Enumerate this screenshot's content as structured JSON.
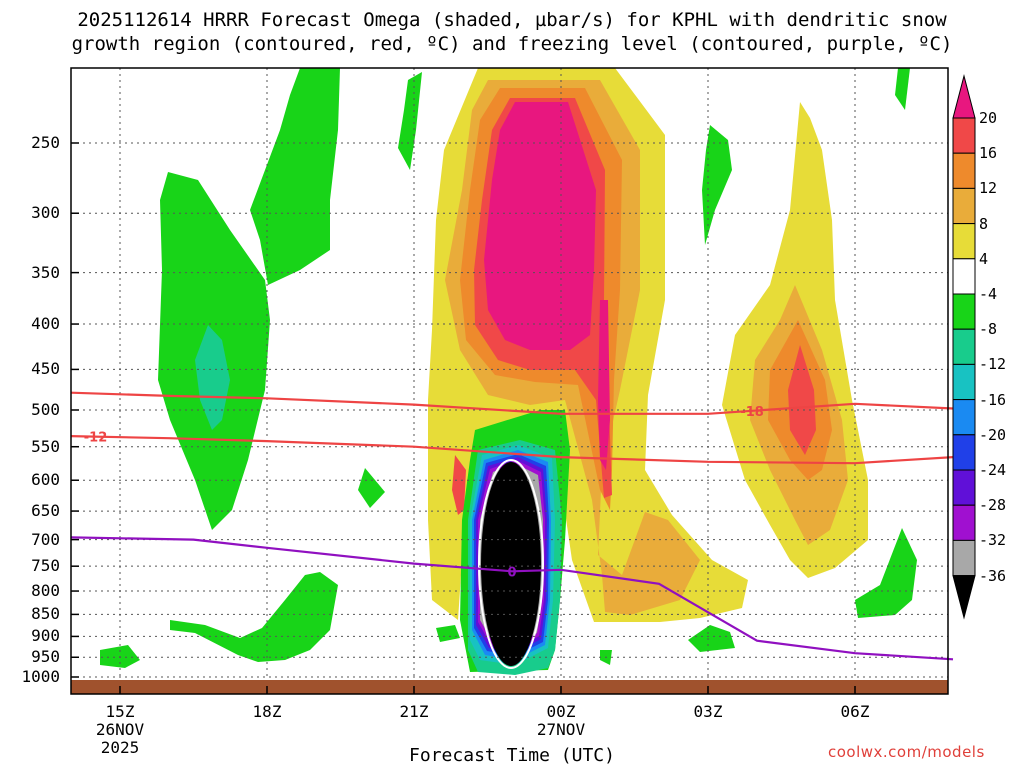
{
  "title_line1": "2025112614 HRRR Forecast Omega (shaded, µbar/s) for KPHL with dendritic snow",
  "title_line2": "growth region (contoured, red, ºC) and freezing level (contoured, purple, ºC)",
  "x_axis_title": "Forecast Time (UTC)",
  "credit": "coolwx.com/models",
  "y_labels": [
    "250",
    "300",
    "350",
    "400",
    "450",
    "500",
    "550",
    "600",
    "650",
    "700",
    "750",
    "800",
    "850",
    "900",
    "950",
    "1000"
  ],
  "x_labels": [
    {
      "l1": "15Z",
      "l2": "26NOV",
      "l3": "2025"
    },
    {
      "l1": "18Z",
      "l2": "",
      "l3": ""
    },
    {
      "l1": "21Z",
      "l2": "",
      "l3": ""
    },
    {
      "l1": "00Z",
      "l2": "27NOV",
      "l3": ""
    },
    {
      "l1": "03Z",
      "l2": "",
      "l3": ""
    },
    {
      "l1": "06Z",
      "l2": "",
      "l3": ""
    }
  ],
  "colorbar_labels": [
    "20",
    "16",
    "12",
    "8",
    "4",
    "-4",
    "-8",
    "-12",
    "-16",
    "-20",
    "-24",
    "-28",
    "-32",
    "-36"
  ],
  "contour_labels": {
    "minus12": "-12",
    "minus18": "-18",
    "zero": "0"
  },
  "colors": {
    "pink": "#e8177f",
    "red": "#f04848",
    "orange": "#ee8a2c",
    "lightorange": "#e9ac3a",
    "yellow": "#e7dc38",
    "green": "#18d418",
    "teal": "#18cc8c",
    "cyan": "#18c2c2",
    "blue": "#1a8af2",
    "darkblue": "#2040e8",
    "indigo": "#6010d8",
    "purple": "#a010d0",
    "gray": "#a8a8a8",
    "black": "#000000",
    "ground": "#a0522d",
    "dgz": "#ee4444",
    "freezing": "#9010c0"
  },
  "chart_data": {
    "type": "heatmap",
    "title": "2025112614 HRRR Forecast Omega (shaded, µbar/s) for KPHL with dendritic snow growth region (contoured, red, ºC) and freezing level (contoured, purple, ºC)",
    "xlabel": "Forecast Time (UTC)",
    "ylabel": "",
    "x_ticks": [
      "15Z 26NOV 2025",
      "18Z",
      "21Z",
      "00Z 27NOV",
      "03Z",
      "06Z"
    ],
    "y_ticks_hpa": [
      250,
      300,
      350,
      400,
      450,
      500,
      550,
      600,
      650,
      700,
      750,
      800,
      850,
      900,
      950,
      1000
    ],
    "colorbar_levels": [
      20,
      16,
      12,
      8,
      4,
      -4,
      -8,
      -12,
      -16,
      -20,
      -24,
      -28,
      -32,
      -36
    ],
    "contours": [
      {
        "name": "-12",
        "color": "red",
        "x_hours_after_15Z": [
          -1,
          1,
          3,
          6,
          9,
          12,
          15,
          17
        ],
        "pressure_hpa": [
          535,
          538,
          542,
          550,
          565,
          572,
          574,
          565
        ]
      },
      {
        "name": "-18",
        "color": "red",
        "x_hours_after_15Z": [
          -1,
          1,
          3,
          6,
          9,
          12,
          15,
          17
        ],
        "pressure_hpa": [
          478,
          482,
          485,
          493,
          505,
          505,
          492,
          498
        ]
      },
      {
        "name": "0",
        "color": "purple",
        "x_hours_after_15Z": [
          -1,
          1.5,
          3,
          6,
          8,
          9,
          11,
          13,
          15,
          17
        ],
        "pressure_hpa": [
          696,
          700,
          715,
          745,
          760,
          757,
          785,
          910,
          940,
          955
        ]
      }
    ],
    "grid": true
  }
}
